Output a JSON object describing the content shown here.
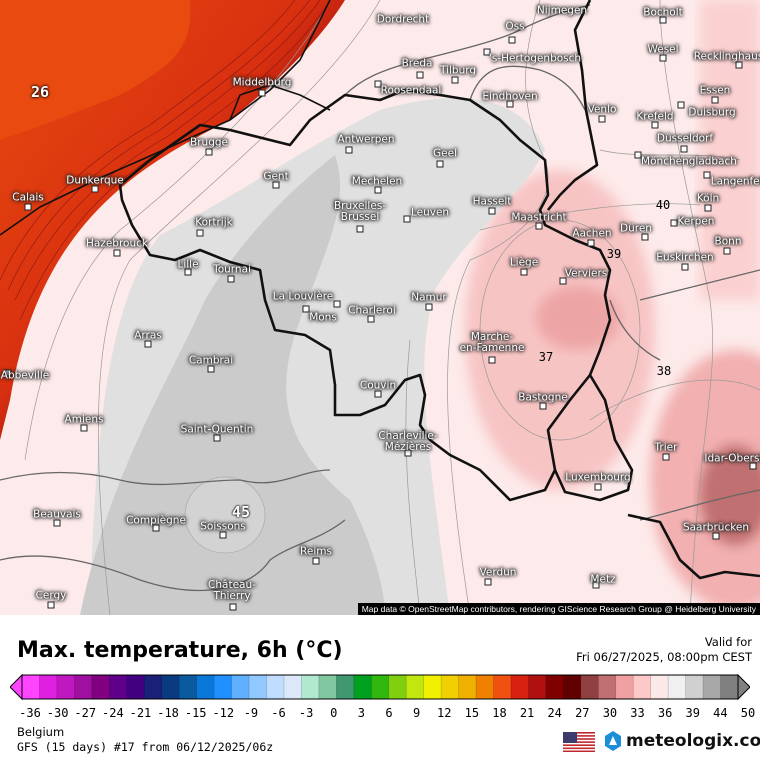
{
  "map": {
    "attribution": "Map data © OpenStreetMap contributors, rendering GIScience Research Group @ Heidelberg University",
    "cities": [
      "Dordrecht",
      "Oss",
      "Nijmegen",
      "Bocholt",
      "Wesel",
      "Recklinghausen",
      "Breda",
      "Tilburg",
      "'s-Hertogenbosch",
      "Essen",
      "Duisburg",
      "Roosendaal",
      "Eindhoven",
      "Venlo",
      "Krefeld",
      "Middelburg",
      "Düsseldorf",
      "Mönchengladbach",
      "Antwerpen",
      "Brugge",
      "Geel",
      "Langenfeld",
      "Gent",
      "Dunkerque",
      "Mechelen",
      "Calais",
      "Bruxelles-\nBrussel",
      "Hasselt",
      "Leuven",
      "Köln",
      "Maastricht",
      "Kortrijk",
      "Kerpen",
      "Aachen",
      "Düren",
      "Bonn",
      "Hazebrouck",
      "Liège",
      "Euskirchen",
      "Lille",
      "Tournai",
      "Verviers",
      "La Louvière",
      "Charleroi",
      "Namur",
      "Mons",
      "Arras",
      "Marche-\nen-Famenne",
      "Cambrai",
      "Abbeville",
      "Couvin",
      "Bastogne",
      "Amiens",
      "Saint-Quentin",
      "Charleville-\nMézières",
      "Trier",
      "Idar-Oberstein",
      "Luxembourg",
      "Beauvais",
      "Compiègne",
      "Soissons",
      "Saarbrücken",
      "Reims",
      "Verdun",
      "Metz",
      "Château-\nThierry",
      "Cergy"
    ],
    "contour_labels": [
      "26",
      "45",
      "40",
      "39",
      "37",
      "38"
    ]
  },
  "header": {
    "title": "Max. temperature, 6h (°C)",
    "valid_label": "Valid for",
    "valid_time": "Fri 06/27/2025, 08:00pm CEST"
  },
  "legend": {
    "ticks": [
      "-36",
      "-30",
      "-27",
      "-24",
      "-21",
      "-18",
      "-15",
      "-12",
      "-9",
      "-6",
      "-3",
      "0",
      "3",
      "6",
      "9",
      "12",
      "15",
      "18",
      "21",
      "24",
      "27",
      "30",
      "33",
      "36",
      "39",
      "44",
      "50"
    ],
    "colors": [
      "#ff44ff",
      "#e020e0",
      "#c018c0",
      "#a010a0",
      "#800080",
      "#60008a",
      "#400080",
      "#1a2078",
      "#0a3a80",
      "#0a5aa0",
      "#0a78d8",
      "#2090ff",
      "#60b0ff",
      "#90c8ff",
      "#c0dcff",
      "#dce8fa",
      "#b0e8d0",
      "#80c8a0",
      "#409870",
      "#00a020",
      "#30b810",
      "#80d010",
      "#c0e810",
      "#f0f000",
      "#f0d000",
      "#f0b000",
      "#f08000",
      "#f05010",
      "#d82010",
      "#b01010",
      "#800000",
      "#600000",
      "#904040",
      "#c07070",
      "#f0a0a0",
      "#fcc8c8",
      "#fde8e8",
      "#f0f0f0",
      "#d0d0d0",
      "#a8a8a8",
      "#808080"
    ],
    "unit": "°C"
  },
  "footer": {
    "region": "Belgium",
    "model": "GFS (15 days) #17 from  06/12/2025/06z",
    "brand": "meteologix.com",
    "flag_icon": "us-flag-icon",
    "logo_icon": "meteologix-logo-icon"
  }
}
